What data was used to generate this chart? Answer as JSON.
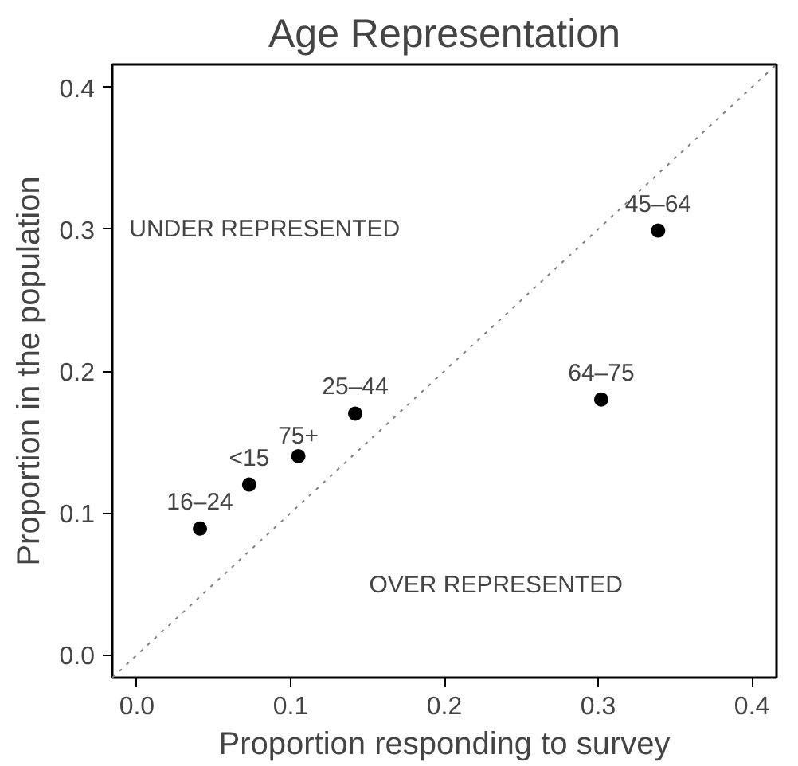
{
  "chart_data": {
    "type": "scatter",
    "title": "Age Representation",
    "xlabel": "Proportion responding to survey",
    "ylabel": "Proportion in the population",
    "xlim": [
      -0.016,
      0.416
    ],
    "ylim": [
      -0.016,
      0.416
    ],
    "xticks": [
      {
        "value": 0,
        "label": "0.0"
      },
      0.1,
      0.2,
      0.3,
      0.4
    ],
    "yticks": [
      {
        "value": 0,
        "label": "0.0"
      },
      0.1,
      0.2,
      0.3,
      0.4
    ],
    "grid": false,
    "marker": "circle",
    "series": [
      {
        "color": "#000000",
        "x": [
          0.041,
          0.073,
          0.105,
          0.142,
          0.302,
          0.339
        ],
        "values": [
          0.089,
          0.12,
          0.14,
          0.17,
          0.18,
          0.299
        ]
      },
      {
        "type": "line",
        "color": "#808080",
        "line_style": "dotted",
        "marker": "none",
        "x": [
          -0.016,
          0.416
        ],
        "values": [
          -0.016,
          0.416
        ]
      }
    ],
    "annotations": [
      {
        "text": "16–24",
        "x": 0.041,
        "y": 0.089
      },
      {
        "text": "<15",
        "x": 0.073,
        "y": 0.12
      },
      {
        "text": "75+",
        "x": 0.105,
        "y": 0.14
      },
      {
        "text": "25–44",
        "x": 0.142,
        "y": 0.17
      },
      {
        "text": "64–75",
        "x": 0.302,
        "y": 0.18
      },
      {
        "text": "45–64",
        "x": 0.339,
        "y": 0.299
      },
      "UNDER REPRESENTED",
      "OVER REPRESENTED"
    ]
  }
}
